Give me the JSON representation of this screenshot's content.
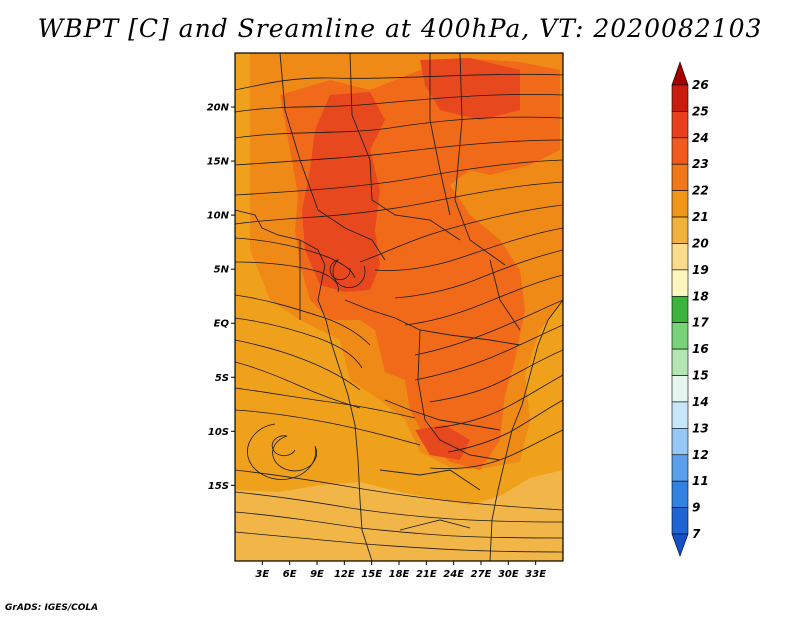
{
  "title": "WBPT [C] and Sreamline at 400hPa, VT: 2020082103",
  "footer": "GrADS: IGES/COLA",
  "map": {
    "lat_range": [
      -22,
      25
    ],
    "lon_range": [
      0,
      36
    ],
    "lat_ticks": [
      {
        "value": 20,
        "label": "20N"
      },
      {
        "value": 15,
        "label": "15N"
      },
      {
        "value": 10,
        "label": "10N"
      },
      {
        "value": 5,
        "label": "5N"
      },
      {
        "value": 0,
        "label": "EQ"
      },
      {
        "value": -5,
        "label": "5S"
      },
      {
        "value": -10,
        "label": "10S"
      },
      {
        "value": -15,
        "label": "15S"
      }
    ],
    "lon_ticks": [
      {
        "value": 3,
        "label": "3E"
      },
      {
        "value": 6,
        "label": "6E"
      },
      {
        "value": 9,
        "label": "9E"
      },
      {
        "value": 12,
        "label": "12E"
      },
      {
        "value": 15,
        "label": "15E"
      },
      {
        "value": 18,
        "label": "18E"
      },
      {
        "value": 21,
        "label": "21E"
      },
      {
        "value": 24,
        "label": "24E"
      },
      {
        "value": 27,
        "label": "27E"
      },
      {
        "value": 30,
        "label": "30E"
      },
      {
        "value": 33,
        "label": "33E"
      }
    ],
    "field_colors": {
      "c20": "#f2b648",
      "c21": "#f0a11c",
      "c22": "#f08a16",
      "c23": "#f06a1a",
      "c24": "#e8481e"
    },
    "streamline_color": "#1a1a1a",
    "border_color": "#222222"
  },
  "colorbar": {
    "labels": [
      "26",
      "25",
      "24",
      "23",
      "22",
      "21",
      "20",
      "19",
      "18",
      "17",
      "16",
      "15",
      "14",
      "13",
      "12",
      "11",
      "9",
      "7"
    ],
    "colors": [
      "#a50000",
      "#c81c0c",
      "#e8401c",
      "#f05a1e",
      "#f07818",
      "#f0961a",
      "#f0b23c",
      "#fadc8c",
      "#fff5be",
      "#3cb43c",
      "#78d278",
      "#b4e6b4",
      "#e6f5f0",
      "#c8e6fa",
      "#96c8f5",
      "#5aa0eb",
      "#3282e1",
      "#1e64d2",
      "#1450c8"
    ]
  }
}
